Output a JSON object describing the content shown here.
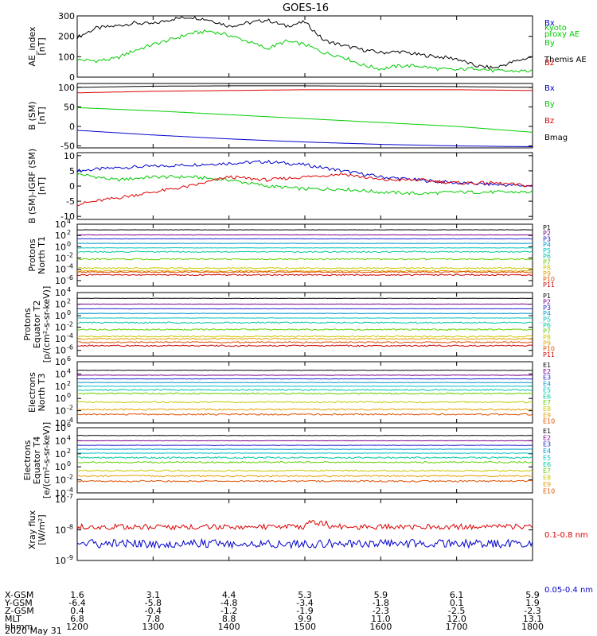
{
  "title": "GOES-16",
  "date": "2020 May 31",
  "colors": {
    "black": "#000000",
    "blue": "#0000cc",
    "green": "#00cc00",
    "red": "#dd0000",
    "p": [
      "#000000",
      "#7a008a",
      "#2020d0",
      "#0096d0",
      "#00c0c0",
      "#00c8a0",
      "#60d000",
      "#c8c800",
      "#e8a000",
      "#e05000",
      "#cc0000"
    ]
  },
  "ephemeris": {
    "labels": [
      "X-GSM",
      "Y-GSM",
      "Z-GSM",
      "MLT",
      "hhmm"
    ],
    "columns": [
      [
        "1.6",
        "-6.4",
        "0.4",
        "6.8",
        "1200"
      ],
      [
        "3.1",
        "-5.8",
        "-0.4",
        "7.8",
        "1300"
      ],
      [
        "4.4",
        "-4.8",
        "-1.2",
        "8.8",
        "1400"
      ],
      [
        "5.3",
        "-3.4",
        "-1.9",
        "9.9",
        "1500"
      ],
      [
        "5.9",
        "-1.8",
        "-2.3",
        "11.0",
        "1600"
      ],
      [
        "6.1",
        "0.1",
        "-2.5",
        "12.0",
        "1700"
      ],
      [
        "5.9",
        "1.9",
        "-2.3",
        "13.1",
        "1800"
      ]
    ]
  },
  "chart_data": [
    {
      "type": "line",
      "ylabel": [
        "AE_index",
        "[nT]"
      ],
      "ylim": [
        0,
        300
      ],
      "yticks": [
        0,
        100,
        200,
        300
      ],
      "ytick_labels": [
        "0",
        "100",
        "200",
        "300"
      ],
      "legend": [
        {
          "text": "Kyoto",
          "color": "#00cc00"
        },
        {
          "text": "proxy AE",
          "color": "#00cc00"
        },
        {
          "text": "Themis AE",
          "color": "#000000"
        }
      ],
      "x": [
        12.0,
        12.25,
        12.5,
        12.75,
        13.0,
        13.25,
        13.5,
        13.75,
        14.0,
        14.25,
        14.5,
        14.75,
        15.0,
        15.25,
        15.5,
        15.75,
        16.0,
        16.25,
        16.5,
        16.75,
        17.0,
        17.25,
        17.5,
        17.75,
        18.0
      ],
      "series": [
        {
          "name": "Themis AE",
          "color": "#000000",
          "values": [
            195,
            240,
            250,
            265,
            260,
            285,
            295,
            280,
            250,
            265,
            280,
            250,
            270,
            180,
            155,
            135,
            120,
            125,
            110,
            100,
            90,
            55,
            45,
            75,
            100
          ]
        },
        {
          "name": "Kyoto proxy AE",
          "color": "#00cc00",
          "values": [
            85,
            80,
            90,
            130,
            160,
            185,
            215,
            225,
            205,
            175,
            140,
            175,
            160,
            120,
            100,
            60,
            40,
            55,
            55,
            40,
            35,
            45,
            30,
            30,
            30
          ]
        }
      ]
    },
    {
      "type": "line",
      "ylabel": [
        "B (SM)",
        "[nT]"
      ],
      "ylim": [
        -55,
        110
      ],
      "yticks": [
        -50,
        0,
        50,
        100
      ],
      "ytick_labels": [
        "-50",
        "0",
        "50",
        "100"
      ],
      "legend": [
        {
          "text": "Bx",
          "color": "#0000cc"
        },
        {
          "text": "By",
          "color": "#00cc00"
        },
        {
          "text": "Bz",
          "color": "#dd0000"
        },
        {
          "text": "Bmag",
          "color": "#000000"
        }
      ],
      "x": [
        12,
        13,
        14,
        15,
        16,
        17,
        18
      ],
      "series": [
        {
          "name": "Bmag",
          "color": "#000000",
          "values": [
            100,
            103,
            104,
            104,
            103,
            102,
            100
          ]
        },
        {
          "name": "Bz",
          "color": "#dd0000",
          "values": [
            86,
            90,
            92,
            94,
            94,
            94,
            92
          ]
        },
        {
          "name": "By",
          "color": "#00cc00",
          "values": [
            48,
            40,
            30,
            20,
            10,
            0,
            -15
          ]
        },
        {
          "name": "Bx",
          "color": "#0000cc",
          "values": [
            -10,
            -22,
            -32,
            -40,
            -46,
            -50,
            -52
          ]
        }
      ]
    },
    {
      "type": "line",
      "ylabel": [
        "B (SM)-IGRF (SM)",
        "[nT]"
      ],
      "ylim": [
        -11,
        11
      ],
      "yticks": [
        -10,
        -5,
        0,
        5,
        10
      ],
      "ytick_labels": [
        "-10",
        "-5",
        "0",
        "5",
        "10"
      ],
      "legend": [
        {
          "text": "Bx",
          "color": "#0000cc"
        },
        {
          "text": "By",
          "color": "#00cc00"
        },
        {
          "text": "Bz",
          "color": "#dd0000"
        }
      ],
      "x": [
        12.0,
        12.5,
        13.0,
        13.5,
        14.0,
        14.5,
        15.0,
        15.5,
        16.0,
        16.5,
        17.0,
        17.5,
        18.0
      ],
      "series": [
        {
          "name": "Bx",
          "color": "#0000cc",
          "values": [
            5,
            6,
            6.5,
            7,
            7.5,
            8,
            7,
            5,
            3,
            2,
            1,
            0.5,
            0
          ]
        },
        {
          "name": "By",
          "color": "#00cc00",
          "values": [
            4,
            2,
            3,
            3,
            2,
            0,
            -1,
            -1,
            -2,
            -2.5,
            -2,
            -2,
            -2
          ]
        },
        {
          "name": "Bz",
          "color": "#dd0000",
          "values": [
            -6,
            -4,
            -2,
            0,
            3,
            2,
            3,
            4,
            2,
            2,
            1,
            1,
            0
          ]
        }
      ]
    },
    {
      "type": "line",
      "log": true,
      "ylabel": [
        "Protons",
        "North T1"
      ],
      "ylim_exp": [
        -7,
        4
      ],
      "ytick_exps": [
        -6,
        -4,
        -2,
        0,
        2,
        4
      ],
      "ytick_labels": [
        "10",
        "10",
        "10",
        "10",
        "10",
        "10"
      ],
      "ytick_sups": [
        "-6",
        "-4",
        "-2",
        "0",
        "2",
        "4"
      ],
      "legend": [
        "P1",
        "P2",
        "P3",
        "P4",
        "P5",
        "P6",
        "P7",
        "P8",
        "P9",
        "P10",
        "P11"
      ],
      "channels_log10": [
        3.0,
        2.1,
        1.4,
        0.6,
        -0.2,
        -0.9,
        -2.2,
        -3.8,
        -4.3,
        -4.5,
        -5.0
      ]
    },
    {
      "type": "line",
      "log": true,
      "ylabel": [
        "Protons",
        "Equator T2",
        "[p/(cm²-s-sr-keV)]"
      ],
      "ylim_exp": [
        -7,
        4
      ],
      "ytick_exps": [
        -6,
        -4,
        -2,
        0,
        2,
        4
      ],
      "ytick_labels": [
        "10",
        "10",
        "10",
        "10",
        "10",
        "10"
      ],
      "ytick_sups": [
        "-6",
        "-4",
        "-2",
        "0",
        "2",
        "4"
      ],
      "legend": [
        "P1",
        "P2",
        "P3",
        "P4",
        "P5",
        "P6",
        "P7",
        "P8",
        "P9",
        "P10",
        "P11"
      ],
      "channels_log10": [
        3.0,
        2.0,
        1.2,
        0.4,
        -0.4,
        -1.2,
        -2.4,
        -3.6,
        -4.0,
        -4.6,
        -5.2
      ]
    },
    {
      "type": "line",
      "log": true,
      "ylabel": [
        "Electrons",
        "North T3"
      ],
      "ylim_exp": [
        -4,
        6
      ],
      "ytick_exps": [
        -4,
        -2,
        0,
        2,
        4,
        6
      ],
      "ytick_labels": [
        "10",
        "10",
        "10",
        "10",
        "10",
        "10"
      ],
      "ytick_sups": [
        "-4",
        "-2",
        "0",
        "2",
        "4",
        "6"
      ],
      "legend": [
        "E1",
        "E2",
        "E3",
        "E4",
        "E5",
        "E6",
        "E7",
        "E8",
        "E9",
        "E10"
      ],
      "channels_log10": [
        4.6,
        3.8,
        3.2,
        2.6,
        2.0,
        1.4,
        0.8,
        -0.6,
        -1.8,
        -2.6
      ]
    },
    {
      "type": "line",
      "log": true,
      "ylabel": [
        "Electrons",
        "Equator T4",
        "[e/(cm²-s-sr-keV)]"
      ],
      "ylim_exp": [
        -4,
        6
      ],
      "ytick_exps": [
        -4,
        -2,
        0,
        2,
        4,
        6
      ],
      "ytick_labels": [
        "10",
        "10",
        "10",
        "10",
        "10",
        "10"
      ],
      "ytick_sups": [
        "-4",
        "-2",
        "0",
        "2",
        "4",
        "6"
      ],
      "legend": [
        "E1",
        "E2",
        "E3",
        "E4",
        "E5",
        "E6",
        "E7",
        "E8",
        "E9",
        "E10"
      ],
      "channels_log10": [
        4.8,
        4.0,
        3.3,
        2.7,
        2.1,
        1.4,
        0.7,
        -0.6,
        -1.4,
        -2.2
      ]
    },
    {
      "type": "line",
      "log": true,
      "ylabel": [
        "Xray flux",
        "[W/m²]"
      ],
      "ylim_exp": [
        -9,
        -7
      ],
      "ytick_exps": [
        -9,
        -8,
        -7
      ],
      "ytick_labels": [
        "10",
        "10",
        "10"
      ],
      "ytick_sups": [
        "-9",
        "-8",
        "-7"
      ],
      "legend": [
        {
          "text": "0.1-0.8 nm",
          "color": "#dd0000"
        },
        {
          "text": "0.05-0.4 nm",
          "color": "#0000cc"
        }
      ],
      "channels_log10": [
        -7.9,
        -8.45
      ]
    }
  ]
}
